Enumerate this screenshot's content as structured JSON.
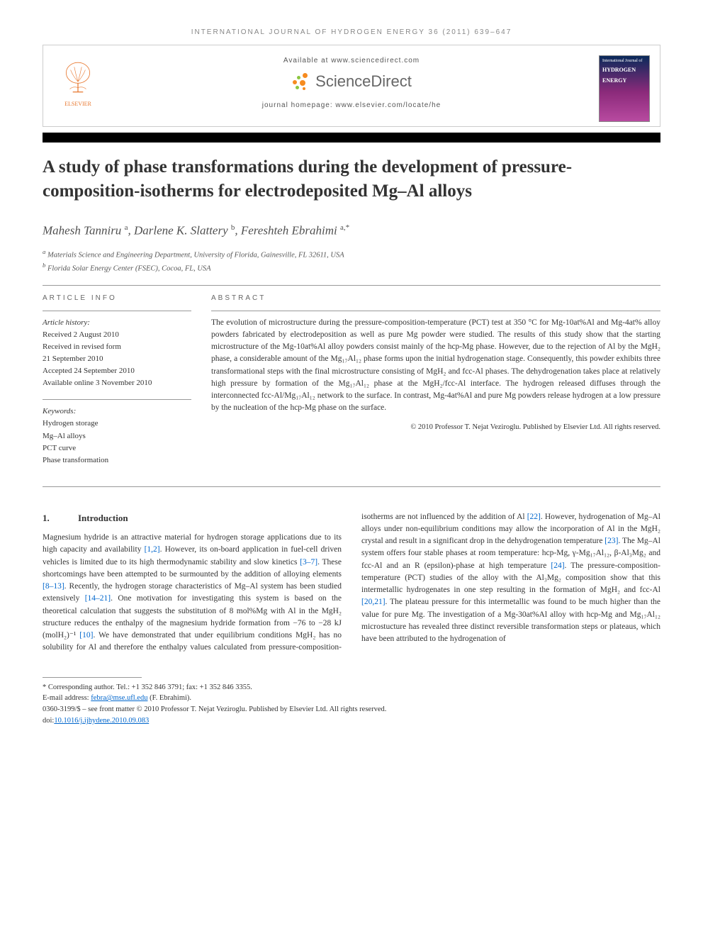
{
  "journal_ref": "INTERNATIONAL JOURNAL OF HYDROGEN ENERGY 36 (2011) 639–647",
  "header": {
    "available_at": "Available at www.sciencedirect.com",
    "sd_name": "ScienceDirect",
    "homepage": "journal homepage: www.elsevier.com/locate/he",
    "elsevier_label": "ELSEVIER",
    "cover": {
      "line1": "International Journal of",
      "line2": "HYDROGEN",
      "line3": "ENERGY"
    },
    "colors": {
      "elsevier_orange": "#e8772e",
      "sd_orange": "#f68b1f",
      "sd_green": "#8cc63f",
      "sd_gray": "#666666"
    }
  },
  "title": "A study of phase transformations during the development of pressure-composition-isotherms for electrodeposited Mg–Al alloys",
  "authors_html": "Mahesh Tanniru <sup>a</sup>, Darlene K. Slattery <sup>b</sup>, Fereshteh Ebrahimi <sup>a,*</sup>",
  "affiliations": [
    "a Materials Science and Engineering Department, University of Florida, Gainesville, FL 32611, USA",
    "b Florida Solar Energy Center (FSEC), Cocoa, FL, USA"
  ],
  "article_info": {
    "heading": "ARTICLE INFO",
    "history_label": "Article history:",
    "history": [
      "Received 2 August 2010",
      "Received in revised form",
      "21 September 2010",
      "Accepted 24 September 2010",
      "Available online 3 November 2010"
    ],
    "keywords_label": "Keywords:",
    "keywords": [
      "Hydrogen storage",
      "Mg–Al alloys",
      "PCT curve",
      "Phase transformation"
    ]
  },
  "abstract": {
    "heading": "ABSTRACT",
    "text": "The evolution of microstructure during the pressure-composition-temperature (PCT) test at 350 °C for Mg-10at%Al and Mg-4at% alloy powders fabricated by electrodeposition as well as pure Mg powder were studied. The results of this study show that the starting microstructure of the Mg-10at%Al alloy powders consist mainly of the hcp-Mg phase. However, due to the rejection of Al by the MgH₂ phase, a considerable amount of the Mg₁₇Al₁₂ phase forms upon the initial hydrogenation stage. Consequently, this powder exhibits three transformational steps with the final microstructure consisting of MgH₂ and fcc-Al phases. The dehydrogenation takes place at relatively high pressure by formation of the Mg₁₇Al₁₂ phase at the MgH₂/fcc-Al interface. The hydrogen released diffuses through the interconnected fcc-Al/Mg₁₇Al₁₂ network to the surface. In contrast, Mg-4at%Al and pure Mg powders release hydrogen at a low pressure by the nucleation of the hcp-Mg phase on the surface.",
    "copyright": "© 2010 Professor T. Nejat Veziroglu. Published by Elsevier Ltd. All rights reserved."
  },
  "section1": {
    "number": "1.",
    "title": "Introduction",
    "para": "Magnesium hydride is an attractive material for hydrogen storage applications due to its high capacity and availability [1,2]. However, its on-board application in fuel-cell driven vehicles is limited due to its high thermodynamic stability and slow kinetics [3–7]. These shortcomings have been attempted to be surmounted by the addition of alloying elements [8–13]. Recently, the hydrogen storage characteristics of Mg–Al system has been studied extensively [14–21]. One motivation for investigating this system is based on the theoretical calculation that suggests the substitution of 8 mol%Mg with Al in the MgH₂ structure reduces the enthalpy of the magnesium hydride formation from −76 to −28 kJ (molH₂)⁻¹ [10]. We have demonstrated that under equilibrium conditions MgH₂ has no solubility for Al and therefore the enthalpy values calculated from pressure-composition-isotherms are not influenced by the addition of Al [22]. However, hydrogenation of Mg–Al alloys under non-equilibrium conditions may allow the incorporation of Al in the MgH₂ crystal and result in a significant drop in the dehydrogenation temperature [23]. The Mg–Al system offers four stable phases at room temperature: hcp-Mg, γ-Mg₁₇Al₁₂, β-Al₃Mg₂ and fcc-Al and an R (epsilon)-phase at high temperature [24]. The pressure-composition-temperature (PCT) studies of the alloy with the Al₃Mg₂ composition show that this intermetallic hydrogenates in one step resulting in the formation of MgH₂ and fcc-Al [20,21]. The plateau pressure for this intermetallic was found to be much higher than the value for pure Mg. The investigation of a Mg-30at%Al alloy with hcp-Mg and Mg₁₇Al₁₂ microstucture has revealed three distinct reversible transformation steps or plateaus, which have been attributed to the hydrogenation of"
  },
  "footer": {
    "corr_label": "* Corresponding author.",
    "corr_contact": "Tel.: +1 352 846 3791; fax: +1 352 846 3355.",
    "email_label": "E-mail address:",
    "email": "febra@mse.ufl.edu",
    "email_paren": "(F. Ebrahimi).",
    "issn_line": "0360-3199/$ – see front matter © 2010 Professor T. Nejat Veziroglu. Published by Elsevier Ltd. All rights reserved.",
    "doi_label": "doi:",
    "doi": "10.1016/j.ijhydene.2010.09.083"
  },
  "colors": {
    "link": "#0066cc",
    "text": "#333333",
    "rule": "#999999"
  }
}
